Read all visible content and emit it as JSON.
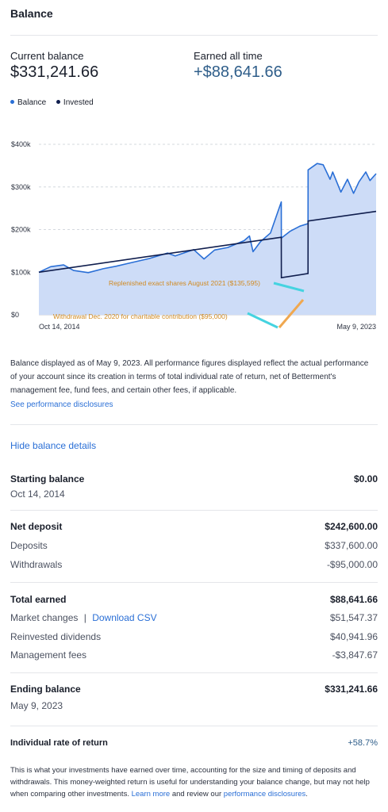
{
  "header": {
    "title": "Balance"
  },
  "summary": {
    "current_label": "Current balance",
    "current_value": "$331,241.66",
    "earned_label": "Earned all time",
    "earned_value": "+$88,641.66"
  },
  "legend": [
    {
      "label": "Balance",
      "color": "#2a6fd6"
    },
    {
      "label": "Invested",
      "color": "#101e4e"
    }
  ],
  "chart_data": {
    "type": "area",
    "x_start_label": "Oct 14, 2014",
    "x_end_label": "May 9, 2023",
    "xlim": [
      "2014-10-14",
      "2023-05-09"
    ],
    "ylim": [
      0,
      400000
    ],
    "y_ticks": [
      "$400k",
      "$300k",
      "$200k",
      "$100k",
      "$0"
    ],
    "y_tick_values": [
      400000,
      300000,
      200000,
      100000,
      0
    ],
    "grid": true,
    "series": [
      {
        "name": "Balance",
        "color": "#2a6fd6",
        "fill": "#cddcf7",
        "points": [
          [
            "2014-10-14",
            100000
          ],
          [
            "2015-02-01",
            113000
          ],
          [
            "2015-06-01",
            117000
          ],
          [
            "2015-09-01",
            104000
          ],
          [
            "2016-01-15",
            99000
          ],
          [
            "2016-06-01",
            108000
          ],
          [
            "2016-10-01",
            114000
          ],
          [
            "2017-03-01",
            123000
          ],
          [
            "2017-08-01",
            132000
          ],
          [
            "2018-01-20",
            145000
          ],
          [
            "2018-04-01",
            138000
          ],
          [
            "2018-09-20",
            153000
          ],
          [
            "2018-12-24",
            131000
          ],
          [
            "2019-04-01",
            152000
          ],
          [
            "2019-08-01",
            158000
          ],
          [
            "2019-12-31",
            174000
          ],
          [
            "2020-02-19",
            185000
          ],
          [
            "2020-03-23",
            148000
          ],
          [
            "2020-06-01",
            172000
          ],
          [
            "2020-09-01",
            192000
          ],
          [
            "2020-12-10",
            265000
          ],
          [
            "2020-12-11",
            180000
          ],
          [
            "2021-03-01",
            196000
          ],
          [
            "2021-06-01",
            208000
          ],
          [
            "2021-08-15",
            214000
          ],
          [
            "2021-08-16",
            340000
          ],
          [
            "2021-11-08",
            355000
          ],
          [
            "2022-01-03",
            352000
          ],
          [
            "2022-03-08",
            318000
          ],
          [
            "2022-04-01",
            335000
          ],
          [
            "2022-06-16",
            288000
          ],
          [
            "2022-08-16",
            318000
          ],
          [
            "2022-10-12",
            285000
          ],
          [
            "2022-12-01",
            312000
          ],
          [
            "2023-02-02",
            335000
          ],
          [
            "2023-03-13",
            315000
          ],
          [
            "2023-05-09",
            331241.66
          ]
        ]
      },
      {
        "name": "Invested",
        "color": "#101e4e",
        "points": [
          [
            "2014-10-14",
            100000
          ],
          [
            "2020-12-10",
            182000
          ],
          [
            "2020-12-11",
            87000
          ],
          [
            "2021-08-15",
            97000
          ],
          [
            "2021-08-16",
            220000
          ],
          [
            "2023-05-09",
            242600
          ]
        ]
      }
    ],
    "annotations": [
      {
        "text": "Replenished exact shares August 2021 ($135,595)",
        "date": "2021-08-16"
      },
      {
        "text": "Withdrawal Dec. 2020 for charitable contribution ($95,000)",
        "date": "2020-12-10"
      }
    ]
  },
  "note": {
    "text": "Balance displayed as of May 9, 2023. All performance figures displayed reflect the actual performance of your account since its creation in terms of total individual rate of return, net of Betterment's management fee, fund fees, and certain other fees, if applicable.",
    "disclosures_link": "See performance disclosures"
  },
  "details": {
    "hide_link": "Hide balance details",
    "starting": {
      "label": "Starting balance",
      "value": "$0.00",
      "date": "Oct 14, 2014"
    },
    "net_deposit": {
      "label": "Net deposit",
      "value": "$242,600.00"
    },
    "deposits": {
      "label": "Deposits",
      "value": "$337,600.00"
    },
    "withdrawals": {
      "label": "Withdrawals",
      "value": "-$95,000.00"
    },
    "total_earned": {
      "label": "Total earned",
      "value": "$88,641.66"
    },
    "market_changes": {
      "label": "Market changes",
      "separator": "|",
      "link": "Download CSV",
      "value": "$51,547.37"
    },
    "dividends": {
      "label": "Reinvested dividends",
      "value": "$40,941.96"
    },
    "fees": {
      "label": "Management fees",
      "value": "-$3,847.67"
    },
    "ending": {
      "label": "Ending balance",
      "value": "$331,241.66",
      "date": "May 9, 2023"
    },
    "rate": {
      "label": "Individual rate of return",
      "value": "+58.7%"
    }
  },
  "rate_note": {
    "text_1": "This is what your investments have earned over time, accounting for the size and timing of deposits and withdrawals. This money-weighted return is useful for understanding your balance change, but may not help when comparing other investments.",
    "learn_more": "Learn more",
    "and_review": "and review our",
    "perf_disclosures": "performance disclosures",
    "period": "."
  }
}
